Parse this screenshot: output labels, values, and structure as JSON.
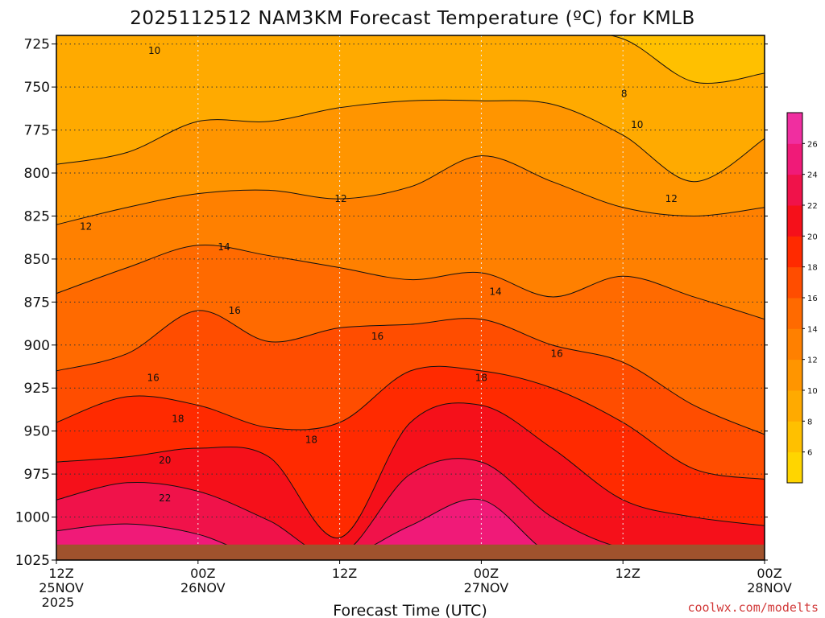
{
  "chart_data": {
    "type": "heatmap",
    "title": "2025112512 NAM3KM Forecast Temperature (ºC) for KMLB",
    "xlabel": "Forecast Time (UTC)",
    "ylabel": "",
    "credit": "coolwx.com/modelts",
    "y_ticks": [
      "725",
      "750",
      "775",
      "800",
      "825",
      "850",
      "875",
      "900",
      "925",
      "950",
      "975",
      "1000",
      "1025"
    ],
    "y_range_hpa": [
      720,
      1025
    ],
    "x_range_hours": [
      0,
      60
    ],
    "x_ticks": [
      {
        "hour": 0,
        "time": "12Z",
        "date": "25NOV",
        "year": "2025"
      },
      {
        "hour": 12,
        "time": "00Z",
        "date": "26NOV",
        "year": ""
      },
      {
        "hour": 24,
        "time": "12Z",
        "date": "",
        "year": ""
      },
      {
        "hour": 36,
        "time": "00Z",
        "date": "27NOV",
        "year": ""
      },
      {
        "hour": 48,
        "time": "12Z",
        "date": "",
        "year": ""
      },
      {
        "hour": 60,
        "time": "00Z",
        "date": "28NOV",
        "year": ""
      }
    ],
    "grid": true,
    "colorbar": {
      "levels": [
        4,
        6,
        8,
        10,
        12,
        14,
        16,
        18,
        20,
        22,
        24,
        26,
        28
      ],
      "labels": [
        "6",
        "8",
        "10",
        "12",
        "14",
        "16",
        "18",
        "20",
        "22",
        "24",
        "26"
      ],
      "colors": [
        "#ffd500",
        "#ffc000",
        "#ffaa00",
        "#ff9500",
        "#ff8000",
        "#ff6a00",
        "#ff4d00",
        "#ff2a00",
        "#f5101a",
        "#f0124a",
        "#f01a78",
        "#f02ea0"
      ]
    },
    "isotherm_hours": [
      0,
      6,
      12,
      18,
      24,
      30,
      36,
      42,
      48,
      54,
      60
    ],
    "isotherms_hpa": [
      {
        "temp": 8,
        "p": [
          null,
          null,
          null,
          null,
          null,
          null,
          null,
          null,
          722,
          747,
          742
        ]
      },
      {
        "temp": 10,
        "p": [
          795,
          788,
          770,
          770,
          762,
          758,
          758,
          760,
          778,
          805,
          780
        ]
      },
      {
        "temp": 12,
        "p": [
          830,
          820,
          812,
          810,
          815,
          808,
          790,
          805,
          820,
          825,
          820
        ]
      },
      {
        "temp": 14,
        "p": [
          870,
          855,
          842,
          848,
          855,
          862,
          858,
          872,
          860,
          872,
          885
        ]
      },
      {
        "temp": 16,
        "p": [
          915,
          905,
          880,
          898,
          890,
          888,
          885,
          900,
          910,
          935,
          952
        ]
      },
      {
        "temp": 18,
        "p": [
          945,
          930,
          935,
          948,
          945,
          915,
          915,
          925,
          945,
          972,
          978
        ]
      },
      {
        "temp": 20,
        "p": [
          968,
          965,
          960,
          965,
          1012,
          945,
          935,
          960,
          990,
          1000,
          1005
        ]
      },
      {
        "temp": 22,
        "p": [
          990,
          980,
          985,
          1002,
          1022,
          975,
          968,
          1000,
          1018,
          1018,
          1018
        ]
      },
      {
        "temp": 24,
        "p": [
          1008,
          1004,
          1010,
          1025,
          1025,
          1005,
          990,
          1022,
          1025,
          1025,
          1025
        ]
      }
    ],
    "contour_labels": [
      {
        "text": "10",
        "hour": 8.3,
        "p": 729
      },
      {
        "text": "8",
        "hour": 48.1,
        "p": 754
      },
      {
        "text": "10",
        "hour": 49.2,
        "p": 772
      },
      {
        "text": "12",
        "hour": 2.5,
        "p": 831
      },
      {
        "text": "12",
        "hour": 24.1,
        "p": 815
      },
      {
        "text": "12",
        "hour": 52.1,
        "p": 815
      },
      {
        "text": "14",
        "hour": 14.2,
        "p": 843
      },
      {
        "text": "14",
        "hour": 37.2,
        "p": 869
      },
      {
        "text": "16",
        "hour": 15.1,
        "p": 880
      },
      {
        "text": "16",
        "hour": 27.2,
        "p": 895
      },
      {
        "text": "16",
        "hour": 8.2,
        "p": 919
      },
      {
        "text": "16",
        "hour": 42.4,
        "p": 905
      },
      {
        "text": "18",
        "hour": 36.0,
        "p": 919
      },
      {
        "text": "18",
        "hour": 10.3,
        "p": 943
      },
      {
        "text": "18",
        "hour": 21.6,
        "p": 955
      },
      {
        "text": "20",
        "hour": 9.2,
        "p": 967
      },
      {
        "text": "22",
        "hour": 9.2,
        "p": 989
      }
    ],
    "surface_hpa": 1016
  }
}
